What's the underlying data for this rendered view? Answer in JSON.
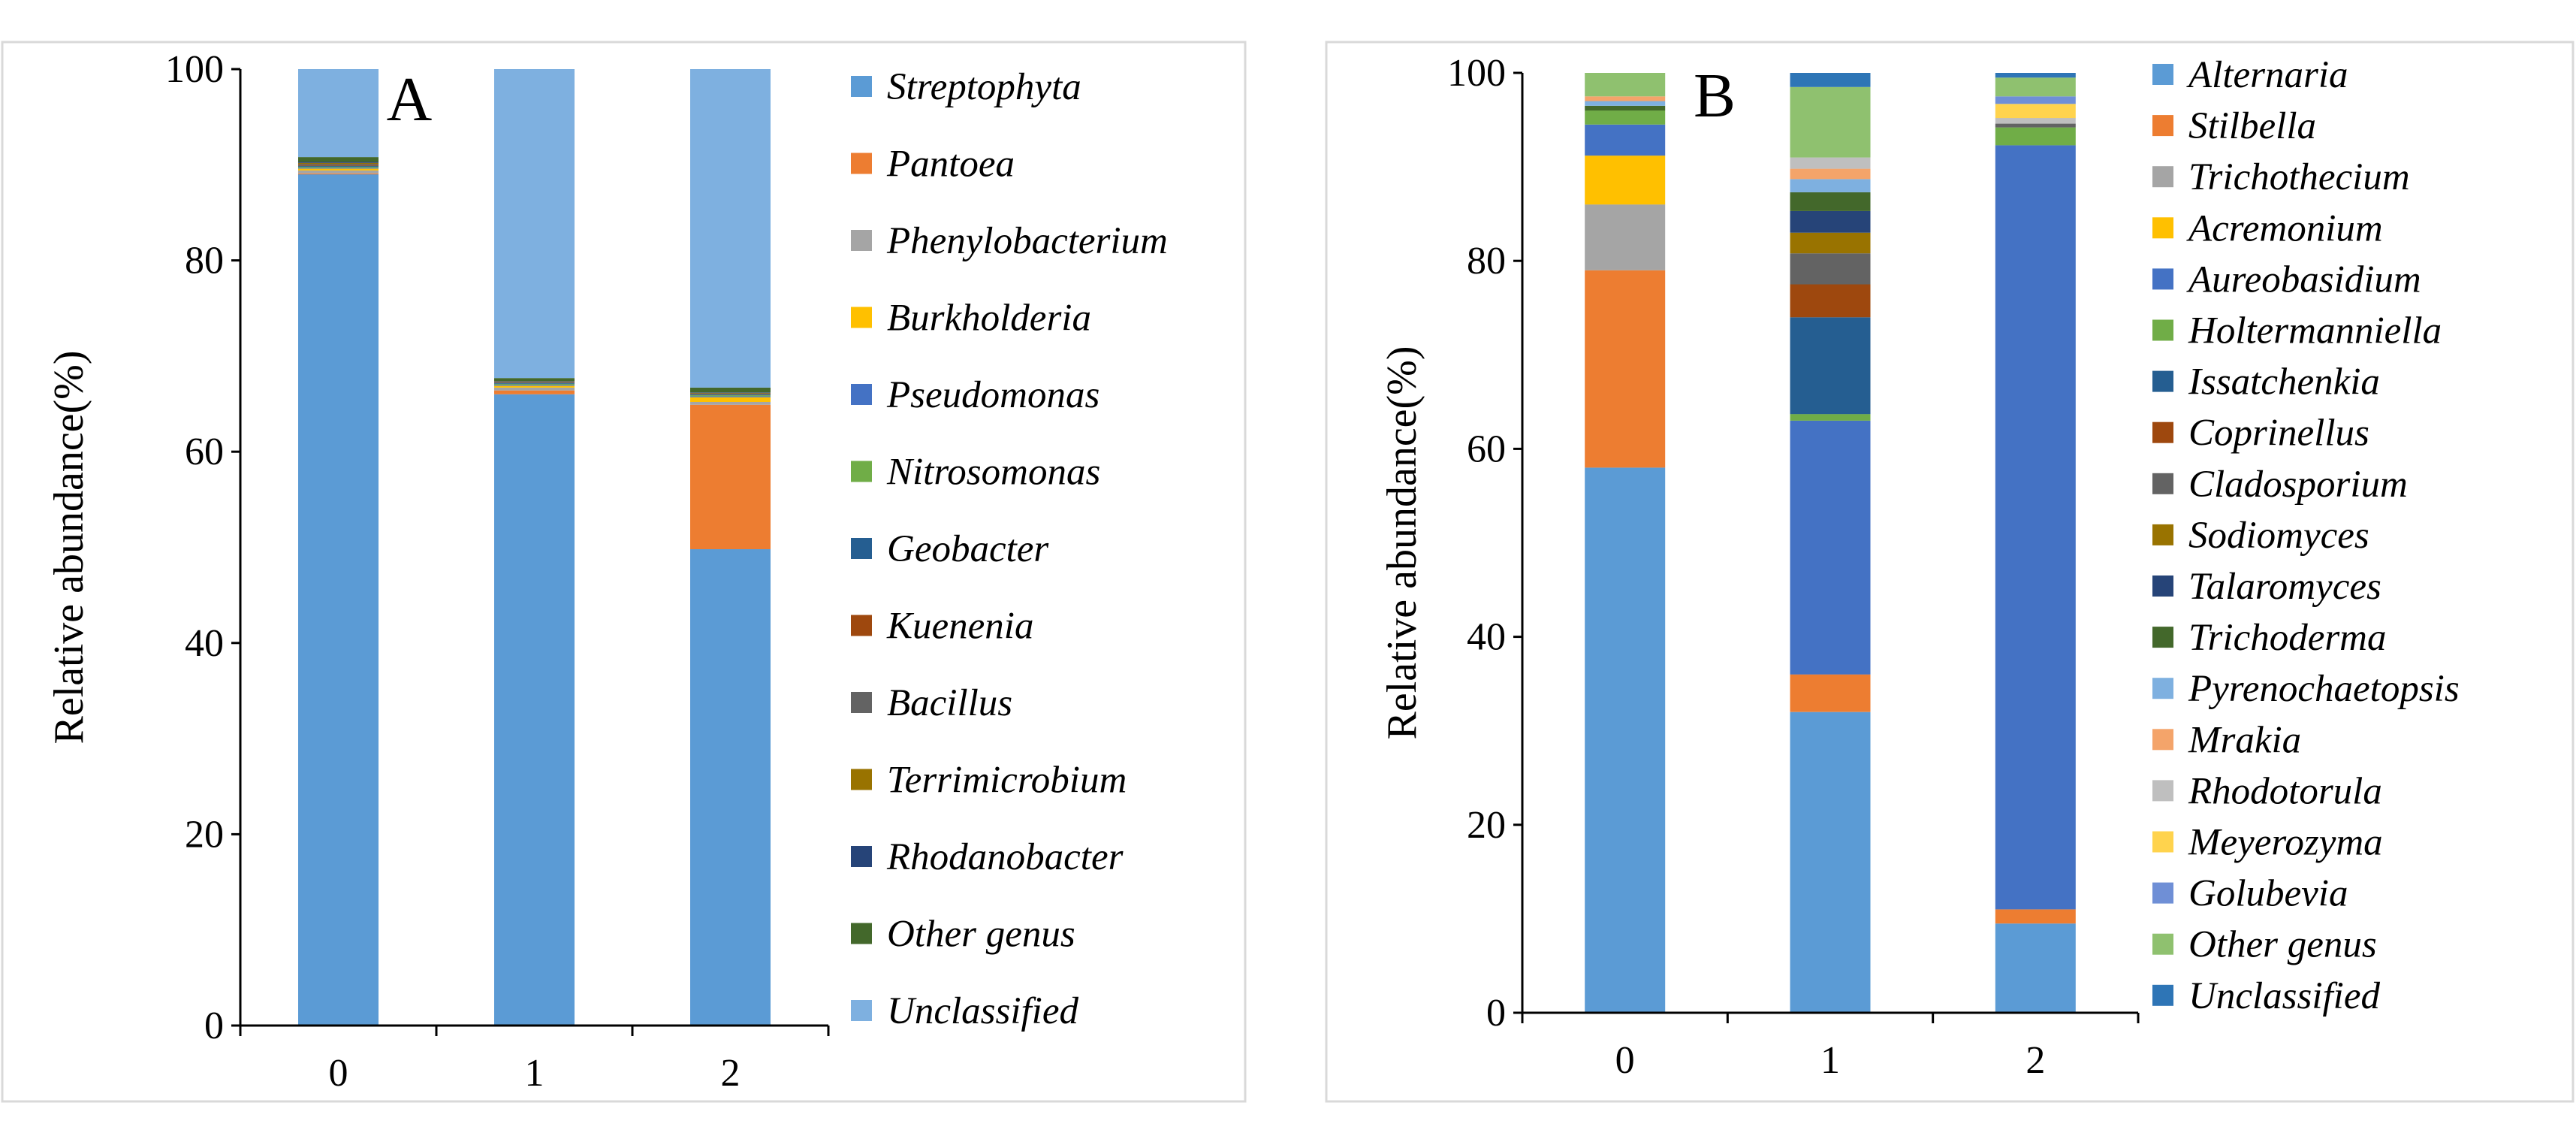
{
  "chart_data": [
    {
      "type": "bar",
      "stacked": true,
      "panel_label": "A",
      "categories": [
        "0",
        "1",
        "2"
      ],
      "ylabel": "Relative abundance(%)",
      "xlabel": "",
      "ylim": [
        0,
        100
      ],
      "yticks": [
        "0",
        "20",
        "40",
        "60",
        "80",
        "100"
      ],
      "grid": false,
      "legend_position": "right",
      "series": [
        {
          "name": "Streptophyta",
          "color": "#5b9bd5",
          "values": [
            89.0,
            66.0,
            49.8
          ]
        },
        {
          "name": "Pantoea",
          "color": "#ed7d31",
          "values": [
            0.1,
            0.4,
            15.1
          ]
        },
        {
          "name": "Phenylobacterium",
          "color": "#a5a5a5",
          "values": [
            0.3,
            0.3,
            0.3
          ]
        },
        {
          "name": "Burkholderia",
          "color": "#ffc000",
          "values": [
            0.2,
            0.2,
            0.5
          ]
        },
        {
          "name": "Pseudomonas",
          "color": "#4472c4",
          "values": [
            0.1,
            0.1,
            0.1
          ]
        },
        {
          "name": "Nitrosomonas",
          "color": "#70ad47",
          "values": [
            0.1,
            0.1,
            0.1
          ]
        },
        {
          "name": "Geobacter",
          "color": "#255e91",
          "values": [
            0.1,
            0.1,
            0.1
          ]
        },
        {
          "name": "Kuenenia",
          "color": "#9e480e",
          "values": [
            0.1,
            0.05,
            0.05
          ]
        },
        {
          "name": "Bacillus",
          "color": "#636363",
          "values": [
            0.1,
            0.05,
            0.05
          ]
        },
        {
          "name": "Terrimicrobium",
          "color": "#997300",
          "values": [
            0.1,
            0.05,
            0.05
          ]
        },
        {
          "name": "Rhodanobacter",
          "color": "#264478",
          "values": [
            0.1,
            0.05,
            0.05
          ]
        },
        {
          "name": "Other genus",
          "color": "#43682b",
          "values": [
            0.5,
            0.3,
            0.5
          ]
        },
        {
          "name": "Unclassified",
          "color": "#7eb0e0",
          "values": [
            9.2,
            32.3,
            33.3
          ]
        }
      ]
    },
    {
      "type": "bar",
      "stacked": true,
      "panel_label": "B",
      "categories": [
        "0",
        "1",
        "2"
      ],
      "ylabel": "Relative abundance(%)",
      "xlabel": "",
      "ylim": [
        0,
        100
      ],
      "yticks": [
        "0",
        "20",
        "40",
        "60",
        "80",
        "100"
      ],
      "grid": false,
      "legend_position": "right",
      "series": [
        {
          "name": "Alternaria",
          "color": "#5b9bd5",
          "values": [
            58.0,
            32.0,
            9.5
          ]
        },
        {
          "name": "Stilbella",
          "color": "#ed7d31",
          "values": [
            21.0,
            4.0,
            1.5
          ]
        },
        {
          "name": "Trichothecium",
          "color": "#a5a5a5",
          "values": [
            7.0,
            0.0,
            0.0
          ]
        },
        {
          "name": "Acremonium",
          "color": "#ffc000",
          "values": [
            5.2,
            0.0,
            0.0
          ]
        },
        {
          "name": "Aureobasidium",
          "color": "#4472c4",
          "values": [
            3.3,
            27.0,
            81.3
          ]
        },
        {
          "name": "Holtermanniella",
          "color": "#70ad47",
          "values": [
            1.5,
            0.7,
            1.9
          ]
        },
        {
          "name": "Issatchenkia",
          "color": "#255e91",
          "values": [
            0.0,
            10.3,
            0.0
          ]
        },
        {
          "name": "Coprinellus",
          "color": "#9e480e",
          "values": [
            0.0,
            3.5,
            0.0
          ]
        },
        {
          "name": "Cladosporium",
          "color": "#636363",
          "values": [
            0.0,
            3.3,
            0.4
          ]
        },
        {
          "name": "Sodiomyces",
          "color": "#997300",
          "values": [
            0.0,
            2.2,
            0.0
          ]
        },
        {
          "name": "Talaromyces",
          "color": "#264478",
          "values": [
            0.0,
            2.3,
            0.0
          ]
        },
        {
          "name": "Trichoderma",
          "color": "#43682b",
          "values": [
            0.5,
            2.0,
            0.0
          ]
        },
        {
          "name": "Pyrenochaetopsis",
          "color": "#7eb0e0",
          "values": [
            0.5,
            1.4,
            0.0
          ]
        },
        {
          "name": "Mrakia",
          "color": "#f4a46a",
          "values": [
            0.5,
            1.1,
            0.0
          ]
        },
        {
          "name": "Rhodotorula",
          "color": "#bfbfbf",
          "values": [
            0.0,
            1.2,
            0.6
          ]
        },
        {
          "name": "Meyerozyma",
          "color": "#ffd34d",
          "values": [
            0.0,
            0.0,
            1.5
          ]
        },
        {
          "name": "Golubevia",
          "color": "#6f8fd6",
          "values": [
            0.0,
            0.0,
            0.8
          ]
        },
        {
          "name": "Other genus",
          "color": "#8fc16f",
          "values": [
            2.5,
            7.5,
            2.0
          ]
        },
        {
          "name": "Unclassified",
          "color": "#2e75b6",
          "values": [
            0.0,
            1.5,
            0.5
          ]
        }
      ]
    }
  ]
}
